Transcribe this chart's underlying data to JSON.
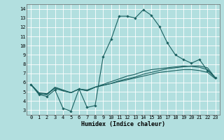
{
  "xlabel": "Humidex (Indice chaleur)",
  "xlim": [
    -0.5,
    23.5
  ],
  "ylim": [
    2.5,
    14.5
  ],
  "yticks": [
    3,
    4,
    5,
    6,
    7,
    8,
    9,
    10,
    11,
    12,
    13,
    14
  ],
  "xticks": [
    0,
    1,
    2,
    3,
    4,
    5,
    6,
    7,
    8,
    9,
    10,
    11,
    12,
    13,
    14,
    15,
    16,
    17,
    18,
    19,
    20,
    21,
    22,
    23
  ],
  "bg_color": "#b2dfdf",
  "grid_color": "#ffffff",
  "line_color": "#1a6060",
  "line1_x": [
    0,
    1,
    2,
    3,
    4,
    5,
    6,
    7,
    8,
    9,
    10,
    11,
    12,
    13,
    14,
    15,
    16,
    17,
    18,
    19,
    20,
    21,
    22,
    23
  ],
  "line1_y": [
    5.8,
    4.7,
    4.5,
    5.2,
    3.2,
    2.9,
    5.3,
    3.3,
    3.5,
    8.8,
    10.7,
    13.2,
    13.2,
    13.0,
    13.9,
    13.3,
    12.1,
    10.3,
    9.0,
    8.5,
    8.1,
    8.5,
    7.3,
    6.5
  ],
  "line2_x": [
    0,
    1,
    2,
    3,
    4,
    5,
    6,
    7,
    8,
    9,
    10,
    11,
    12,
    13,
    14,
    15,
    16,
    17,
    18,
    19,
    20,
    21,
    22,
    23
  ],
  "line2_y": [
    5.8,
    4.8,
    4.7,
    5.5,
    5.2,
    4.9,
    5.3,
    5.2,
    5.5,
    5.7,
    5.9,
    6.2,
    6.4,
    6.6,
    6.9,
    7.1,
    7.3,
    7.5,
    7.6,
    7.7,
    7.8,
    7.8,
    7.6,
    6.5
  ],
  "line3_x": [
    0,
    1,
    2,
    3,
    4,
    5,
    6,
    7,
    8,
    9,
    10,
    11,
    12,
    13,
    14,
    15,
    16,
    17,
    18,
    19,
    20,
    21,
    22,
    23
  ],
  "line3_y": [
    5.8,
    4.8,
    4.7,
    5.4,
    5.1,
    4.9,
    5.3,
    5.1,
    5.5,
    5.8,
    6.1,
    6.4,
    6.7,
    6.9,
    7.2,
    7.4,
    7.5,
    7.6,
    7.7,
    7.8,
    7.75,
    7.65,
    7.4,
    6.5
  ],
  "line4_x": [
    0,
    1,
    2,
    3,
    4,
    5,
    6,
    7,
    8,
    9,
    10,
    11,
    12,
    13,
    14,
    15,
    16,
    17,
    18,
    19,
    20,
    21,
    22,
    23
  ],
  "line4_y": [
    5.8,
    4.9,
    4.8,
    5.4,
    5.1,
    4.9,
    5.3,
    5.1,
    5.5,
    5.7,
    5.9,
    6.1,
    6.3,
    6.5,
    6.7,
    6.9,
    7.1,
    7.2,
    7.3,
    7.4,
    7.4,
    7.3,
    7.1,
    6.4
  ]
}
